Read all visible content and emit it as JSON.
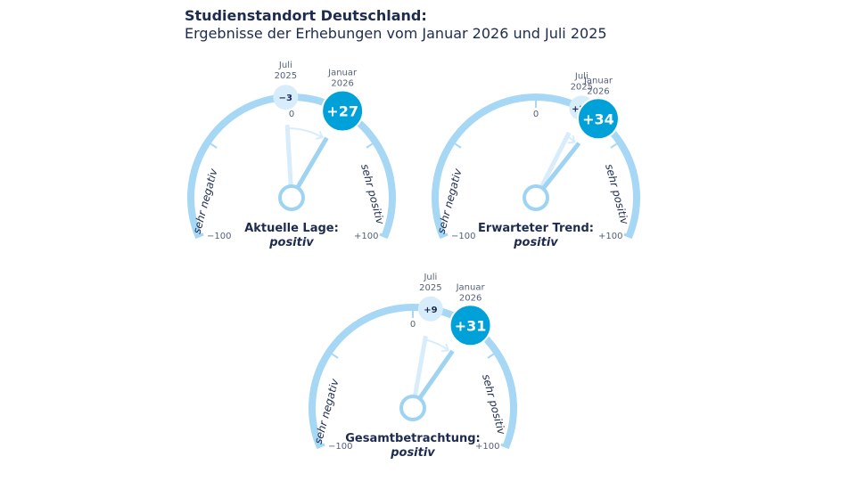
{
  "header": {
    "title": "Studienstandort Deutschland:",
    "subtitle": "Ergebnisse der Erhebungen vom Januar 2026 und Juli 2025"
  },
  "colors": {
    "arc": "#a6d7f4",
    "needle_current": "#9fd3f2",
    "needle_previous": "#d7edfb",
    "badge_current": "#00a0d8",
    "badge_previous": "#d7edfb",
    "text": "#1d2b4f"
  },
  "chart_data": {
    "type": "gauge",
    "range": [
      -100,
      100
    ],
    "ticks": [
      -50,
      0,
      50
    ],
    "scale_labels": {
      "min": "−100",
      "max": "+100",
      "zero": "0",
      "negative": "sehr negativ",
      "positive": "sehr positiv"
    },
    "series_labels": {
      "previous": [
        "Juli",
        "2025"
      ],
      "current": [
        "Januar",
        "2026"
      ]
    },
    "gauges": [
      {
        "label": "Aktuelle Lage:",
        "verdict": "positiv",
        "previous": -3,
        "previous_text": "−3",
        "current": 27,
        "current_text": "+27"
      },
      {
        "label": "Erwarteter Trend:",
        "verdict": "positiv",
        "previous": 24,
        "previous_text": "+24",
        "current": 34,
        "current_text": "+34"
      },
      {
        "label": "Gesamtbetrachtung:",
        "verdict": "positiv",
        "previous": 9,
        "previous_text": "+9",
        "current": 31,
        "current_text": "+31"
      }
    ]
  }
}
